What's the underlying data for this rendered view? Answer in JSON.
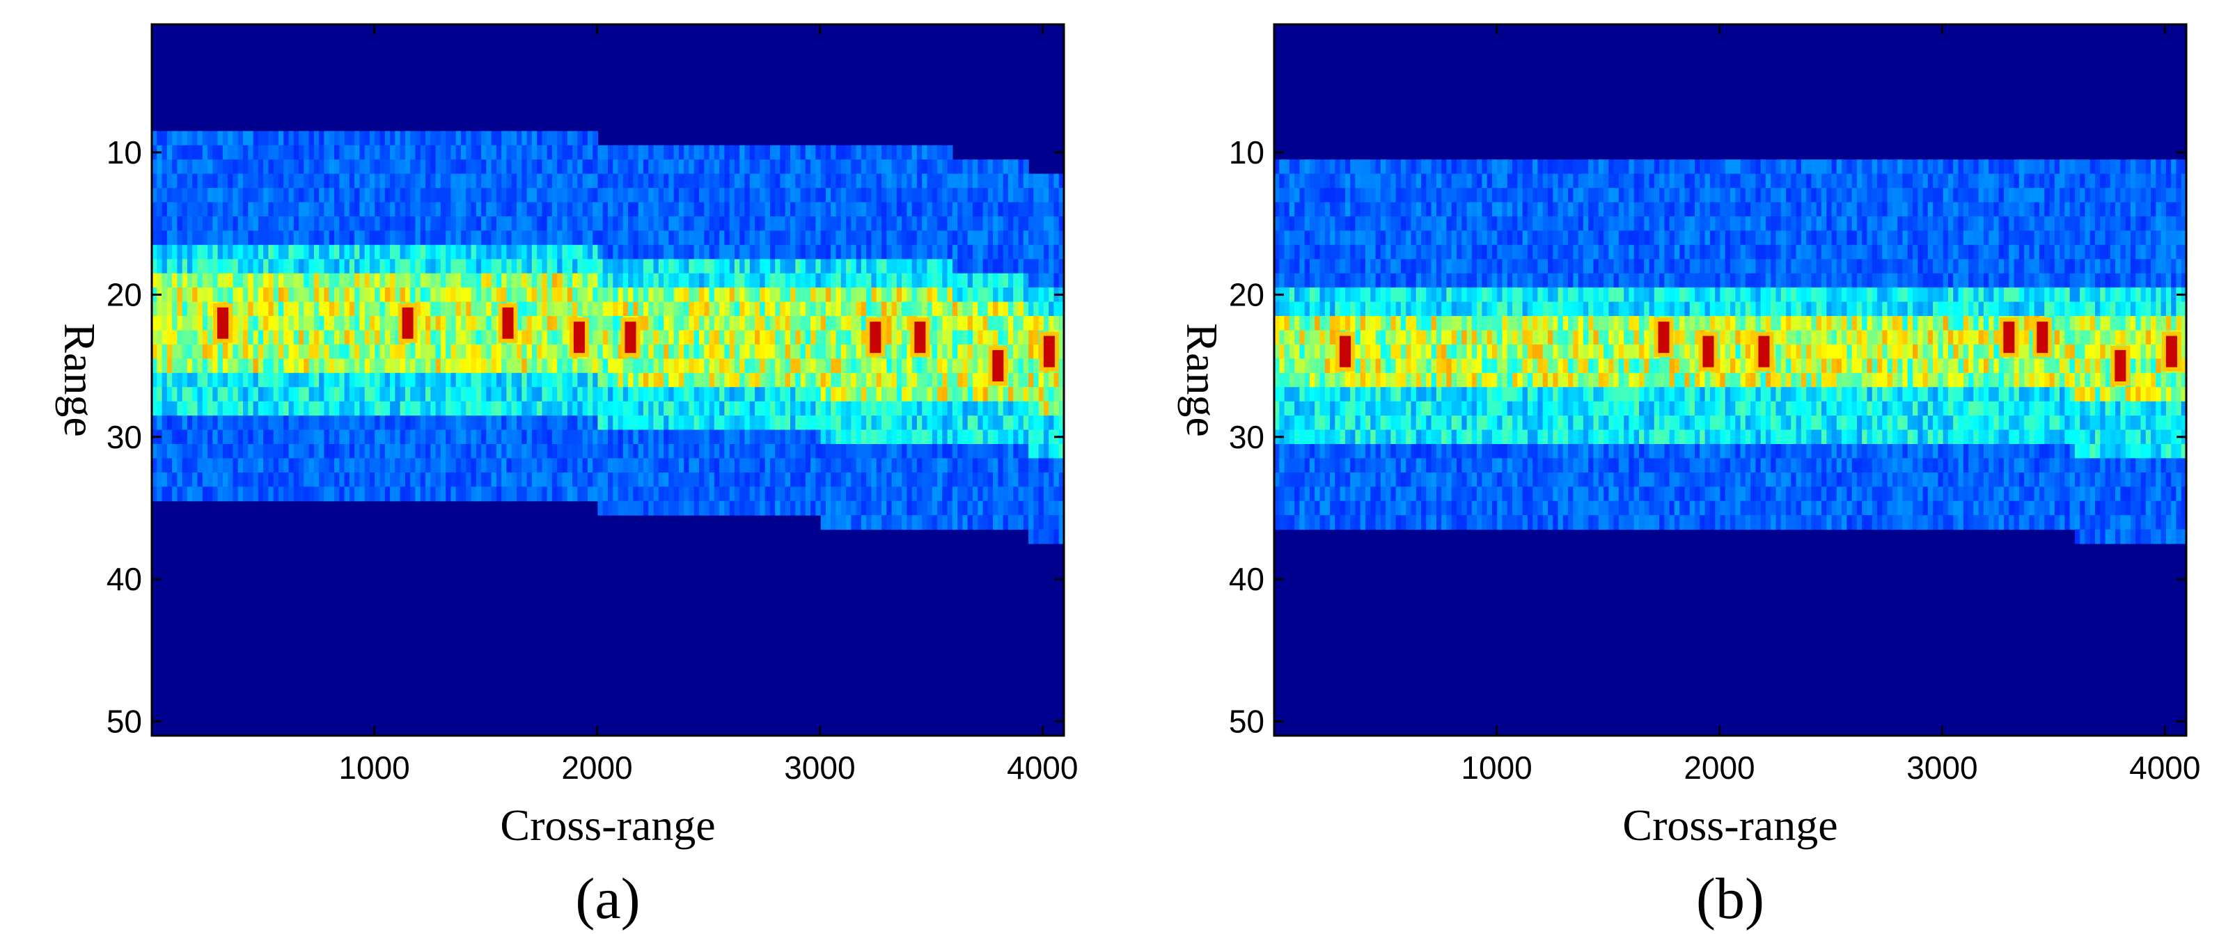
{
  "chart_data": [
    {
      "type": "heatmap",
      "panel_label": "(a)",
      "xlabel": "Cross-range",
      "ylabel": "Range",
      "xlim": [
        1,
        4096
      ],
      "ylim": [
        1,
        51
      ],
      "y_axis_reversed": true,
      "xticks": [
        1000,
        2000,
        3000,
        4000
      ],
      "yticks": [
        10,
        20,
        30,
        40,
        50
      ],
      "colormap": "jet",
      "background_color": "#00008f",
      "bands": [
        {
          "name": "faint",
          "range_start": 10,
          "range_end": 36,
          "intensity": 0.15
        },
        {
          "name": "medium",
          "range_start": 18,
          "range_end": 30,
          "intensity": 0.32
        },
        {
          "name": "strong",
          "range_start": 20,
          "range_end": 27,
          "intensity": 0.6
        }
      ],
      "band_center_range": [
        {
          "x": 1,
          "range": 22
        },
        {
          "x": 1000,
          "range": 22
        },
        {
          "x": 2000,
          "range": 22.5
        },
        {
          "x": 3000,
          "range": 23.5
        },
        {
          "x": 3600,
          "range": 23.5
        },
        {
          "x": 4096,
          "range": 25
        }
      ],
      "hotspots": [
        {
          "x": 320,
          "range": 22
        },
        {
          "x": 1150,
          "range": 22
        },
        {
          "x": 1600,
          "range": 22
        },
        {
          "x": 1920,
          "range": 23
        },
        {
          "x": 2150,
          "range": 23
        },
        {
          "x": 3250,
          "range": 23
        },
        {
          "x": 3450,
          "range": 23
        },
        {
          "x": 3800,
          "range": 25
        },
        {
          "x": 4030,
          "range": 24
        }
      ]
    },
    {
      "type": "heatmap",
      "panel_label": "(b)",
      "xlabel": "Cross-range",
      "ylabel": "Range",
      "xlim": [
        1,
        4096
      ],
      "ylim": [
        1,
        51
      ],
      "y_axis_reversed": true,
      "xticks": [
        1000,
        2000,
        3000,
        4000
      ],
      "yticks": [
        10,
        20,
        30,
        40,
        50
      ],
      "colormap": "jet",
      "background_color": "#00008f",
      "bands": [
        {
          "name": "faint",
          "range_start": 11,
          "range_end": 37,
          "intensity": 0.15
        },
        {
          "name": "medium",
          "range_start": 20,
          "range_end": 31,
          "intensity": 0.32
        },
        {
          "name": "strong",
          "range_start": 22,
          "range_end": 27,
          "intensity": 0.6
        }
      ],
      "band_center_range": [
        {
          "x": 1,
          "range": 24
        },
        {
          "x": 1000,
          "range": 24
        },
        {
          "x": 2000,
          "range": 24
        },
        {
          "x": 3000,
          "range": 24
        },
        {
          "x": 3600,
          "range": 24.5
        },
        {
          "x": 4096,
          "range": 24.5
        }
      ],
      "hotspots": [
        {
          "x": 320,
          "range": 24
        },
        {
          "x": 1750,
          "range": 23
        },
        {
          "x": 1950,
          "range": 24
        },
        {
          "x": 2200,
          "range": 24
        },
        {
          "x": 3300,
          "range": 23
        },
        {
          "x": 3450,
          "range": 23
        },
        {
          "x": 3800,
          "range": 25
        },
        {
          "x": 4030,
          "range": 24
        }
      ]
    }
  ]
}
